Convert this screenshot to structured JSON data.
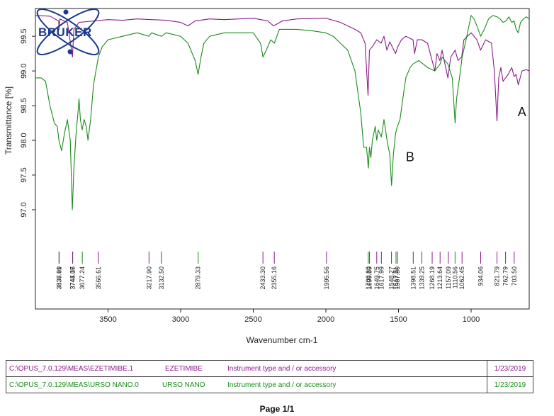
{
  "chart_data": {
    "type": "line",
    "xlabel": "Wavenumber cm-1",
    "ylabel": "Transmittance [%]",
    "xlim": [
      4000,
      600
    ],
    "ylim": [
      96.55,
      99.9
    ],
    "x_ticks": [
      "3500",
      "3000",
      "2500",
      "2000",
      "1500",
      "1000"
    ],
    "x_tick_values": [
      3500,
      3000,
      2500,
      2000,
      1500,
      1000
    ],
    "y_ticks": [
      "97.0",
      "97.5",
      "98.0",
      "98.5",
      "99.0",
      "99.5"
    ],
    "y_tick_values": [
      97.0,
      97.5,
      98.0,
      98.5,
      99.0,
      99.5
    ],
    "annotations": [
      {
        "text": "A",
        "x": 650,
        "y": 98.35
      },
      {
        "text": "B",
        "x": 1420,
        "y": 97.7
      }
    ],
    "series": [
      {
        "color": "#8b1a8b",
        "points": [
          [
            4000,
            99.8
          ],
          [
            3900,
            99.79
          ],
          [
            3840,
            99.72
          ],
          [
            3837,
            99.6
          ],
          [
            3832,
            99.75
          ],
          [
            3780,
            99.7
          ],
          [
            3745,
            99.2
          ],
          [
            3735,
            99.6
          ],
          [
            3700,
            99.7
          ],
          [
            3600,
            99.72
          ],
          [
            3500,
            99.74
          ],
          [
            3400,
            99.73
          ],
          [
            3300,
            99.75
          ],
          [
            3200,
            99.74
          ],
          [
            3100,
            99.73
          ],
          [
            3000,
            99.7
          ],
          [
            2950,
            99.65
          ],
          [
            2900,
            99.72
          ],
          [
            2800,
            99.75
          ],
          [
            2700,
            99.74
          ],
          [
            2500,
            99.76
          ],
          [
            2400,
            99.72
          ],
          [
            2360,
            99.65
          ],
          [
            2300,
            99.72
          ],
          [
            2200,
            99.75
          ],
          [
            2000,
            99.76
          ],
          [
            1900,
            99.7
          ],
          [
            1800,
            99.6
          ],
          [
            1760,
            99.55
          ],
          [
            1730,
            99.4
          ],
          [
            1710,
            98.65
          ],
          [
            1700,
            99.3
          ],
          [
            1680,
            99.35
          ],
          [
            1650,
            99.45
          ],
          [
            1620,
            99.4
          ],
          [
            1600,
            99.5
          ],
          [
            1580,
            99.3
          ],
          [
            1560,
            99.42
          ],
          [
            1520,
            99.25
          ],
          [
            1505,
            99.35
          ],
          [
            1480,
            99.45
          ],
          [
            1450,
            99.5
          ],
          [
            1400,
            99.45
          ],
          [
            1390,
            99.25
          ],
          [
            1370,
            99.45
          ],
          [
            1340,
            99.45
          ],
          [
            1300,
            99.4
          ],
          [
            1250,
            99.0
          ],
          [
            1235,
            99.25
          ],
          [
            1215,
            99.15
          ],
          [
            1200,
            99.3
          ],
          [
            1160,
            98.9
          ],
          [
            1140,
            99.2
          ],
          [
            1110,
            99.3
          ],
          [
            1090,
            99.15
          ],
          [
            1065,
            99.2
          ],
          [
            1050,
            99.45
          ],
          [
            1000,
            99.55
          ],
          [
            960,
            99.45
          ],
          [
            935,
            99.3
          ],
          [
            900,
            99.45
          ],
          [
            860,
            99.4
          ],
          [
            840,
            99.0
          ],
          [
            822,
            98.28
          ],
          [
            810,
            98.9
          ],
          [
            795,
            99.05
          ],
          [
            780,
            98.85
          ],
          [
            763,
            98.9
          ],
          [
            745,
            98.95
          ],
          [
            720,
            99.05
          ],
          [
            704,
            98.92
          ],
          [
            690,
            98.95
          ],
          [
            675,
            98.8
          ],
          [
            650,
            99.0
          ],
          [
            620,
            99.02
          ],
          [
            600,
            99.0
          ]
        ]
      },
      {
        "color": "#1a8c1a",
        "points": [
          [
            4000,
            98.9
          ],
          [
            3960,
            98.9
          ],
          [
            3930,
            98.85
          ],
          [
            3900,
            98.5
          ],
          [
            3870,
            98.25
          ],
          [
            3850,
            98.2
          ],
          [
            3838,
            98.0
          ],
          [
            3820,
            97.85
          ],
          [
            3800,
            98.1
          ],
          [
            3780,
            98.3
          ],
          [
            3760,
            98.0
          ],
          [
            3746,
            97.0
          ],
          [
            3735,
            97.6
          ],
          [
            3720,
            98.1
          ],
          [
            3705,
            98.45
          ],
          [
            3700,
            98.6
          ],
          [
            3690,
            98.3
          ],
          [
            3678,
            98.15
          ],
          [
            3665,
            98.3
          ],
          [
            3650,
            98.2
          ],
          [
            3638,
            98.0
          ],
          [
            3620,
            98.3
          ],
          [
            3600,
            98.8
          ],
          [
            3567,
            99.2
          ],
          [
            3540,
            99.35
          ],
          [
            3500,
            99.45
          ],
          [
            3400,
            99.5
          ],
          [
            3300,
            99.55
          ],
          [
            3218,
            99.5
          ],
          [
            3200,
            99.55
          ],
          [
            3132,
            99.5
          ],
          [
            3100,
            99.55
          ],
          [
            3000,
            99.5
          ],
          [
            2950,
            99.4
          ],
          [
            2900,
            99.15
          ],
          [
            2880,
            98.95
          ],
          [
            2860,
            99.2
          ],
          [
            2840,
            99.4
          ],
          [
            2800,
            99.5
          ],
          [
            2700,
            99.55
          ],
          [
            2600,
            99.55
          ],
          [
            2500,
            99.55
          ],
          [
            2450,
            99.4
          ],
          [
            2433,
            99.2
          ],
          [
            2410,
            99.3
          ],
          [
            2380,
            99.45
          ],
          [
            2355,
            99.4
          ],
          [
            2320,
            99.6
          ],
          [
            2200,
            99.6
          ],
          [
            2100,
            99.58
          ],
          [
            2000,
            99.55
          ],
          [
            1950,
            99.5
          ],
          [
            1900,
            99.4
          ],
          [
            1850,
            99.3
          ],
          [
            1800,
            99.0
          ],
          [
            1760,
            98.4
          ],
          [
            1740,
            97.9
          ],
          [
            1720,
            97.9
          ],
          [
            1708,
            97.6
          ],
          [
            1700,
            97.9
          ],
          [
            1690,
            97.75
          ],
          [
            1680,
            98.0
          ],
          [
            1660,
            98.2
          ],
          [
            1650,
            98.0
          ],
          [
            1640,
            98.15
          ],
          [
            1618,
            98.05
          ],
          [
            1600,
            98.3
          ],
          [
            1575,
            97.95
          ],
          [
            1560,
            97.8
          ],
          [
            1548,
            97.35
          ],
          [
            1535,
            97.8
          ],
          [
            1520,
            98.1
          ],
          [
            1508,
            98.2
          ],
          [
            1490,
            98.3
          ],
          [
            1470,
            98.6
          ],
          [
            1450,
            98.9
          ],
          [
            1420,
            99.05
          ],
          [
            1400,
            99.1
          ],
          [
            1360,
            99.15
          ],
          [
            1300,
            99.05
          ],
          [
            1250,
            99.0
          ],
          [
            1213,
            99.1
          ],
          [
            1200,
            99.2
          ],
          [
            1160,
            99.1
          ],
          [
            1130,
            98.9
          ],
          [
            1110,
            98.25
          ],
          [
            1100,
            98.6
          ],
          [
            1080,
            98.9
          ],
          [
            1062,
            99.2
          ],
          [
            1040,
            99.4
          ],
          [
            1020,
            99.6
          ],
          [
            1000,
            99.8
          ],
          [
            980,
            99.75
          ],
          [
            960,
            99.65
          ],
          [
            934,
            99.5
          ],
          [
            910,
            99.6
          ],
          [
            880,
            99.75
          ],
          [
            850,
            99.8
          ],
          [
            822,
            99.78
          ],
          [
            800,
            99.75
          ],
          [
            780,
            99.7
          ],
          [
            760,
            99.72
          ],
          [
            740,
            99.78
          ],
          [
            720,
            99.7
          ],
          [
            704,
            99.72
          ],
          [
            690,
            99.6
          ],
          [
            675,
            99.55
          ],
          [
            660,
            99.7
          ],
          [
            640,
            99.75
          ],
          [
            620,
            99.78
          ],
          [
            600,
            99.75
          ]
        ]
      }
    ],
    "peak_markers": [
      {
        "label": "3837.69",
        "x": 3837.69,
        "color": "#555555"
      },
      {
        "label": "3836.91",
        "x": 3836.91,
        "color": "#8b1a8b"
      },
      {
        "label": "3744.07",
        "x": 3744.07,
        "color": "#1a8c1a"
      },
      {
        "label": "3743.16",
        "x": 3743.16,
        "color": "#8b1a8b"
      },
      {
        "label": "3677.24",
        "x": 3677.24,
        "color": "#1a8c1a"
      },
      {
        "label": "3566.61",
        "x": 3566.61,
        "color": "#8b1a8b"
      },
      {
        "label": "3217.90",
        "x": 3217.9,
        "color": "#8b1a8b"
      },
      {
        "label": "3132.50",
        "x": 3132.5,
        "color": "#8b1a8b"
      },
      {
        "label": "2879.33",
        "x": 2879.33,
        "color": "#1a8c1a"
      },
      {
        "label": "2433.30",
        "x": 2433.3,
        "color": "#8b1a8b"
      },
      {
        "label": "2355.16",
        "x": 2355.16,
        "color": "#8b1a8b"
      },
      {
        "label": "1995.56",
        "x": 1995.56,
        "color": "#8b1a8b"
      },
      {
        "label": "1708.30",
        "x": 1708.3,
        "color": "#1a8c1a"
      },
      {
        "label": "1699.59",
        "x": 1699.59,
        "color": "#8b1a8b"
      },
      {
        "label": "1649.75",
        "x": 1649.75,
        "color": "#8b1a8b"
      },
      {
        "label": "1617.99",
        "x": 1617.99,
        "color": "#8b1a8b"
      },
      {
        "label": "1548.27",
        "x": 1548.27,
        "color": "#8b1a8b"
      },
      {
        "label": "1517.31",
        "x": 1517.31,
        "color": "#1a8c1a"
      },
      {
        "label": "1507.80",
        "x": 1507.8,
        "color": "#8b1a8b"
      },
      {
        "label": "1398.51",
        "x": 1398.51,
        "color": "#8b1a8b"
      },
      {
        "label": "1339.25",
        "x": 1339.25,
        "color": "#8b1a8b"
      },
      {
        "label": "1268.19",
        "x": 1268.19,
        "color": "#8b1a8b"
      },
      {
        "label": "1213.64",
        "x": 1213.64,
        "color": "#8b1a8b"
      },
      {
        "label": "1157.09",
        "x": 1157.09,
        "color": "#8b1a8b"
      },
      {
        "label": "1110.56",
        "x": 1110.56,
        "color": "#1a8c1a"
      },
      {
        "label": "1062.45",
        "x": 1062.45,
        "color": "#8b1a8b"
      },
      {
        "label": "934.06",
        "x": 934.06,
        "color": "#8b1a8b"
      },
      {
        "label": "821.79",
        "x": 821.79,
        "color": "#8b1a8b"
      },
      {
        "label": "762.79",
        "x": 762.79,
        "color": "#8b1a8b"
      },
      {
        "label": "703.50",
        "x": 703.5,
        "color": "#8b1a8b"
      }
    ]
  },
  "logo": {
    "text": "BRUKER"
  },
  "files": [
    {
      "path": "C:\\OPUS_7.0.129\\MEAS\\EZETIMIBE.1",
      "sample": "EZETIMIBE",
      "instrument": "Instrument type and / or accessory",
      "date": "1/23/2019",
      "color": "#8b1a8b"
    },
    {
      "path": "C:\\OPUS_7.0.129\\MEAS\\URSO NANO.0",
      "sample": "URSO NANO",
      "instrument": "Instrument type and / or accessory",
      "date": "1/23/2019",
      "color": "#1a8c1a"
    }
  ],
  "footer": {
    "page": "Page 1/1"
  }
}
